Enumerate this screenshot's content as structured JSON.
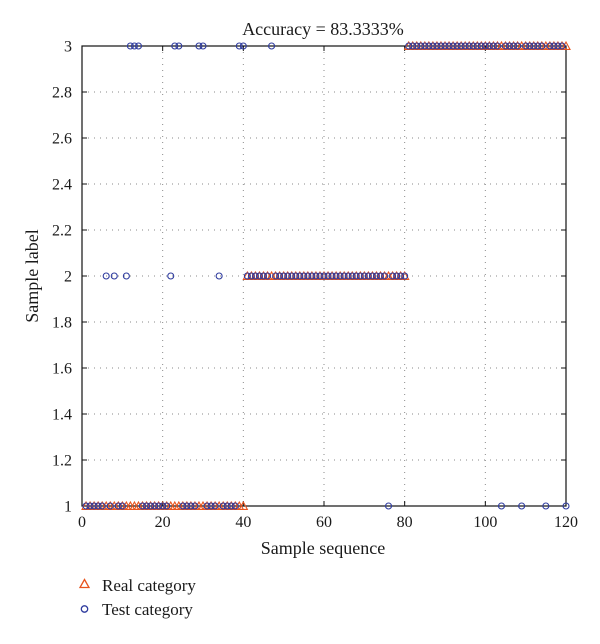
{
  "chart_data": {
    "type": "scatter",
    "title": "Accuracy = 83.3333%",
    "xlabel": "Sample sequence",
    "ylabel": "Sample label",
    "xlim": [
      0,
      120
    ],
    "ylim": [
      1,
      3
    ],
    "xticks": [
      "0",
      "20",
      "40",
      "60",
      "80",
      "100",
      "120"
    ],
    "yticks": [
      "1",
      "1.2",
      "1.4",
      "1.6",
      "1.8",
      "2",
      "2.2",
      "2.4",
      "2.6",
      "2.8",
      "3"
    ],
    "grid": true,
    "legend_position": "below-left",
    "series": [
      {
        "name": "Real category",
        "marker": "triangle",
        "color": "#e8541e",
        "x": [
          1,
          2,
          3,
          4,
          5,
          6,
          7,
          8,
          9,
          10,
          11,
          12,
          13,
          14,
          15,
          16,
          17,
          18,
          19,
          20,
          21,
          22,
          23,
          24,
          25,
          26,
          27,
          28,
          29,
          30,
          31,
          32,
          33,
          34,
          35,
          36,
          37,
          38,
          39,
          40,
          41,
          42,
          43,
          44,
          45,
          46,
          47,
          48,
          49,
          50,
          51,
          52,
          53,
          54,
          55,
          56,
          57,
          58,
          59,
          60,
          61,
          62,
          63,
          64,
          65,
          66,
          67,
          68,
          69,
          70,
          71,
          72,
          73,
          74,
          75,
          76,
          77,
          78,
          79,
          80,
          81,
          82,
          83,
          84,
          85,
          86,
          87,
          88,
          89,
          90,
          91,
          92,
          93,
          94,
          95,
          96,
          97,
          98,
          99,
          100,
          101,
          102,
          103,
          104,
          105,
          106,
          107,
          108,
          109,
          110,
          111,
          112,
          113,
          114,
          115,
          116,
          117,
          118,
          119,
          120
        ],
        "y": [
          1,
          1,
          1,
          1,
          1,
          1,
          1,
          1,
          1,
          1,
          1,
          1,
          1,
          1,
          1,
          1,
          1,
          1,
          1,
          1,
          1,
          1,
          1,
          1,
          1,
          1,
          1,
          1,
          1,
          1,
          1,
          1,
          1,
          1,
          1,
          1,
          1,
          1,
          1,
          1,
          2,
          2,
          2,
          2,
          2,
          2,
          2,
          2,
          2,
          2,
          2,
          2,
          2,
          2,
          2,
          2,
          2,
          2,
          2,
          2,
          2,
          2,
          2,
          2,
          2,
          2,
          2,
          2,
          2,
          2,
          2,
          2,
          2,
          2,
          2,
          2,
          2,
          2,
          2,
          2,
          3,
          3,
          3,
          3,
          3,
          3,
          3,
          3,
          3,
          3,
          3,
          3,
          3,
          3,
          3,
          3,
          3,
          3,
          3,
          3,
          3,
          3,
          3,
          3,
          3,
          3,
          3,
          3,
          3,
          3,
          3,
          3,
          3,
          3,
          3,
          3,
          3,
          3,
          3,
          3
        ]
      },
      {
        "name": "Test category",
        "marker": "circle",
        "color": "#2e3b9e",
        "x": [
          1,
          2,
          3,
          4,
          5,
          6,
          7,
          8,
          9,
          10,
          11,
          12,
          13,
          14,
          15,
          16,
          17,
          18,
          19,
          20,
          21,
          22,
          23,
          24,
          25,
          26,
          27,
          28,
          29,
          30,
          31,
          32,
          33,
          34,
          35,
          36,
          37,
          38,
          39,
          40,
          41,
          42,
          43,
          44,
          45,
          46,
          47,
          48,
          49,
          50,
          51,
          52,
          53,
          54,
          55,
          56,
          57,
          58,
          59,
          60,
          61,
          62,
          63,
          64,
          65,
          66,
          67,
          68,
          69,
          70,
          71,
          72,
          73,
          74,
          75,
          76,
          77,
          78,
          79,
          80,
          81,
          82,
          83,
          84,
          85,
          86,
          87,
          88,
          89,
          90,
          91,
          92,
          93,
          94,
          95,
          96,
          97,
          98,
          99,
          100,
          101,
          102,
          103,
          104,
          105,
          106,
          107,
          108,
          109,
          110,
          111,
          112,
          113,
          114,
          115,
          116,
          117,
          118,
          119,
          120
        ],
        "y": [
          1,
          1,
          1,
          1,
          1,
          2,
          1,
          2,
          1,
          1,
          2,
          3,
          3,
          3,
          1,
          1,
          1,
          1,
          1,
          1,
          1,
          2,
          3,
          3,
          1,
          1,
          1,
          1,
          3,
          3,
          1,
          1,
          1,
          2,
          1,
          1,
          1,
          1,
          3,
          3,
          2,
          2,
          2,
          2,
          2,
          2,
          3,
          2,
          2,
          2,
          2,
          2,
          2,
          2,
          2,
          2,
          2,
          2,
          2,
          2,
          2,
          2,
          2,
          2,
          2,
          2,
          2,
          2,
          2,
          2,
          2,
          2,
          2,
          2,
          2,
          1,
          2,
          2,
          2,
          2,
          3,
          3,
          3,
          3,
          3,
          3,
          3,
          3,
          3,
          3,
          3,
          3,
          3,
          3,
          3,
          3,
          3,
          3,
          3,
          3,
          3,
          3,
          3,
          1,
          3,
          3,
          3,
          3,
          1,
          3,
          3,
          3,
          3,
          3,
          1,
          3,
          3,
          3,
          3,
          1
        ]
      }
    ]
  }
}
